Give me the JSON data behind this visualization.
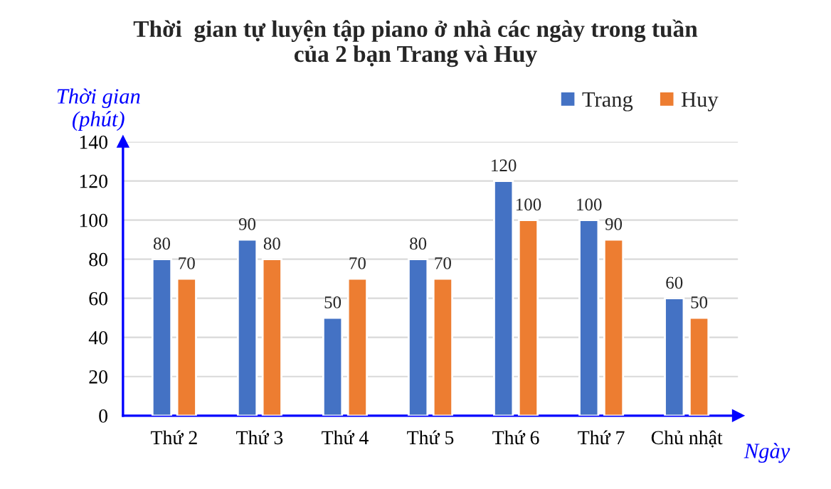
{
  "chart_data": {
    "type": "bar",
    "title": "Thời  gian tự luyện tập piano ở nhà các ngày trong tuần\ncủa 2 bạn Trang và Huy",
    "xlabel": "Ngày",
    "ylabel": "Thời gian\n(phút)",
    "categories": [
      "Thứ 2",
      "Thứ 3",
      "Thứ 4",
      "Thứ 5",
      "Thứ 6",
      "Thứ 7",
      "Chủ nhật"
    ],
    "series": [
      {
        "name": "Trang",
        "color": "#4472c4",
        "values": [
          80,
          90,
          50,
          80,
          120,
          100,
          60
        ]
      },
      {
        "name": "Huy",
        "color": "#ed7d31",
        "values": [
          70,
          80,
          70,
          70,
          100,
          90,
          50
        ]
      }
    ],
    "ylim": [
      0,
      140
    ],
    "yticks": [
      0,
      20,
      40,
      60,
      80,
      100,
      120,
      140
    ],
    "grid": "y",
    "legend": "top right",
    "data_labels": true
  }
}
